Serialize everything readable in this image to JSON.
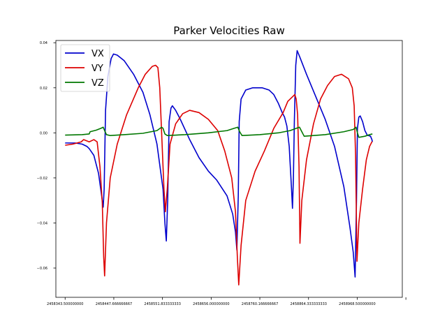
{
  "chart_data": {
    "type": "line",
    "title": "Parker Velocities Raw",
    "xlabel": "",
    "ylabel": "",
    "xlim": [
      2458323.7,
      2459065.0
    ],
    "ylim": [
      -0.073,
      0.041
    ],
    "x_ticks": [
      2458343.5,
      2458447.666666667,
      2458551.833333333,
      2458656.0,
      2458760.166666667,
      2458864.333333333,
      2458968.5,
      2459072.666666667
    ],
    "x_tick_labels": [
      "2458343.500000000",
      "2458447.666666667",
      "2458551.833333333",
      "2458656.000000000",
      "2458760.166666667",
      "2458864.333333333",
      "2458968.500000000",
      ""
    ],
    "y_ticks": [
      0.04,
      0.02,
      0.0,
      -0.02,
      -0.04,
      -0.06
    ],
    "y_tick_labels": [
      "0.04",
      "0.02",
      "0.00",
      "−0.02",
      "−0.04",
      "−0.06"
    ],
    "legend_position": "top-left",
    "grid": false,
    "series": [
      {
        "name": "VX",
        "color": "#0000cc",
        "points": [
          [
            2458343.5,
            -0.0045
          ],
          [
            2458365,
            -0.0045
          ],
          [
            2458380,
            -0.005
          ],
          [
            2458390,
            -0.006
          ],
          [
            2458395,
            -0.007
          ],
          [
            2458405,
            -0.01
          ],
          [
            2458415,
            -0.018
          ],
          [
            2458423,
            -0.03
          ],
          [
            2458425,
            -0.033
          ],
          [
            2458427,
            -0.025
          ],
          [
            2458430,
            0.01
          ],
          [
            2458435,
            0.025
          ],
          [
            2458442,
            0.033
          ],
          [
            2458447,
            0.035
          ],
          [
            2458455,
            0.0345
          ],
          [
            2458470,
            0.032
          ],
          [
            2458490,
            0.026
          ],
          [
            2458510,
            0.018
          ],
          [
            2458525,
            0.008
          ],
          [
            2458540,
            -0.005
          ],
          [
            2458553,
            -0.025
          ],
          [
            2458557,
            -0.04
          ],
          [
            2458560,
            -0.048
          ],
          [
            2458563,
            -0.03
          ],
          [
            2458566,
            0.005
          ],
          [
            2458570,
            0.011
          ],
          [
            2458573,
            0.012
          ],
          [
            2458580,
            0.01
          ],
          [
            2458590,
            0.006
          ],
          [
            2458610,
            -0.003
          ],
          [
            2458630,
            -0.011
          ],
          [
            2458650,
            -0.017
          ],
          [
            2458668,
            -0.021
          ],
          [
            2458690,
            -0.028
          ],
          [
            2458702,
            -0.036
          ],
          [
            2458708,
            -0.044
          ],
          [
            2458711,
            -0.052
          ],
          [
            2458714,
            -0.028
          ],
          [
            2458716,
            0.005
          ],
          [
            2458720,
            0.015
          ],
          [
            2458730,
            0.019
          ],
          [
            2458745,
            0.02
          ],
          [
            2458765,
            0.02
          ],
          [
            2458780,
            0.019
          ],
          [
            2458790,
            0.017
          ],
          [
            2458800,
            0.013
          ],
          [
            2458808,
            0.009
          ],
          [
            2458813,
            0.007
          ],
          [
            2458818,
            0.003
          ],
          [
            2458823,
            -0.006
          ],
          [
            2458828,
            -0.025
          ],
          [
            2458830,
            -0.0335
          ],
          [
            2458832,
            -0.02
          ],
          [
            2458834,
            0.005
          ],
          [
            2458837,
            0.03
          ],
          [
            2458840,
            0.0365
          ],
          [
            2458845,
            0.034
          ],
          [
            2458860,
            0.026
          ],
          [
            2458880,
            0.016
          ],
          [
            2458900,
            0.006
          ],
          [
            2458920,
            -0.006
          ],
          [
            2458940,
            -0.024
          ],
          [
            2458953,
            -0.042
          ],
          [
            2458960,
            -0.053
          ],
          [
            2458964,
            -0.064
          ],
          [
            2458967,
            -0.03
          ],
          [
            2458969,
            0.002
          ],
          [
            2458972,
            0.007
          ],
          [
            2458975,
            0.0075
          ],
          [
            2458980,
            0.005
          ],
          [
            2458985,
            0.001
          ],
          [
            2458990,
            -0.001
          ],
          [
            2458997,
            -0.0015
          ],
          [
            2459000,
            -0.003
          ],
          [
            2459001,
            -0.004
          ]
        ]
      },
      {
        "name": "VY",
        "color": "#dd0000",
        "points": [
          [
            2458343.5,
            -0.0055
          ],
          [
            2458360,
            -0.005
          ],
          [
            2458378,
            -0.004
          ],
          [
            2458383,
            -0.003
          ],
          [
            2458395,
            -0.004
          ],
          [
            2458405,
            -0.003
          ],
          [
            2458412,
            -0.004
          ],
          [
            2458418,
            -0.015
          ],
          [
            2458423,
            -0.031
          ],
          [
            2458426,
            -0.055
          ],
          [
            2458428,
            -0.0635
          ],
          [
            2458432,
            -0.04
          ],
          [
            2458440,
            -0.02
          ],
          [
            2458455,
            -0.005
          ],
          [
            2458475,
            0.008
          ],
          [
            2458500,
            0.02
          ],
          [
            2458515,
            0.026
          ],
          [
            2458530,
            0.0295
          ],
          [
            2458537,
            0.03
          ],
          [
            2458542,
            0.029
          ],
          [
            2458546,
            0.02
          ],
          [
            2458550,
            0.0
          ],
          [
            2458555,
            -0.025
          ],
          [
            2458558,
            -0.035
          ],
          [
            2458562,
            -0.025
          ],
          [
            2458568,
            -0.005
          ],
          [
            2458580,
            0.004
          ],
          [
            2458595,
            0.0085
          ],
          [
            2458610,
            0.01
          ],
          [
            2458630,
            0.009
          ],
          [
            2458650,
            0.006
          ],
          [
            2458670,
            0.001
          ],
          [
            2458685,
            -0.008
          ],
          [
            2458700,
            -0.02
          ],
          [
            2458708,
            -0.035
          ],
          [
            2458712,
            -0.055
          ],
          [
            2458715,
            -0.0675
          ],
          [
            2458720,
            -0.05
          ],
          [
            2458730,
            -0.03
          ],
          [
            2458750,
            -0.017
          ],
          [
            2458770,
            -0.008
          ],
          [
            2458790,
            0.002
          ],
          [
            2458810,
            0.009
          ],
          [
            2458820,
            0.014
          ],
          [
            2458825,
            0.015
          ],
          [
            2458830,
            0.016
          ],
          [
            2458835,
            0.017
          ],
          [
            2458838,
            0.015
          ],
          [
            2458841,
            0.008
          ],
          [
            2458844,
            -0.015
          ],
          [
            2458846,
            -0.049
          ],
          [
            2458850,
            -0.03
          ],
          [
            2458860,
            -0.012
          ],
          [
            2458875,
            0.004
          ],
          [
            2458890,
            0.015
          ],
          [
            2458905,
            0.021
          ],
          [
            2458920,
            0.025
          ],
          [
            2458935,
            0.026
          ],
          [
            2458950,
            0.024
          ],
          [
            2458958,
            0.02
          ],
          [
            2458962,
            0.012
          ],
          [
            2458965,
            -0.01
          ],
          [
            2458968,
            -0.057
          ],
          [
            2458972,
            -0.04
          ],
          [
            2458980,
            -0.025
          ],
          [
            2458988,
            -0.012
          ],
          [
            2458995,
            -0.006
          ],
          [
            2459000,
            -0.004
          ],
          [
            2459001,
            -0.004
          ]
        ]
      },
      {
        "name": "VZ",
        "color": "#007700",
        "points": [
          [
            2458343.5,
            -0.001
          ],
          [
            2458380,
            -0.0008
          ],
          [
            2458395,
            -0.0005
          ],
          [
            2458397,
            0.0005
          ],
          [
            2458410,
            0.0012
          ],
          [
            2458420,
            0.002
          ],
          [
            2458425,
            0.0025
          ],
          [
            2458428,
            0.001
          ],
          [
            2458432,
            -0.0008
          ],
          [
            2458440,
            -0.0012
          ],
          [
            2458470,
            -0.0008
          ],
          [
            2458510,
            -0.0002
          ],
          [
            2458540,
            0.001
          ],
          [
            2458550,
            0.0025
          ],
          [
            2458553,
            0.002
          ],
          [
            2458557,
            -0.0005
          ],
          [
            2458562,
            -0.0012
          ],
          [
            2458600,
            -0.0008
          ],
          [
            2458650,
            0.0
          ],
          [
            2458690,
            0.001
          ],
          [
            2458705,
            0.002
          ],
          [
            2458713,
            0.0025
          ],
          [
            2458717,
            0.0005
          ],
          [
            2458722,
            -0.0012
          ],
          [
            2458760,
            -0.0008
          ],
          [
            2458800,
            0.0
          ],
          [
            2458825,
            0.001
          ],
          [
            2458838,
            0.002
          ],
          [
            2458845,
            0.0025
          ],
          [
            2458850,
            0.0005
          ],
          [
            2458855,
            -0.0015
          ],
          [
            2458900,
            -0.0008
          ],
          [
            2458940,
            0.0005
          ],
          [
            2458960,
            0.0015
          ],
          [
            2458966,
            0.0025
          ],
          [
            2458969,
            0.0
          ],
          [
            2458972,
            -0.002
          ],
          [
            2458985,
            -0.0015
          ],
          [
            2458995,
            -0.0008
          ],
          [
            2459001,
            -0.0005
          ]
        ]
      }
    ]
  }
}
